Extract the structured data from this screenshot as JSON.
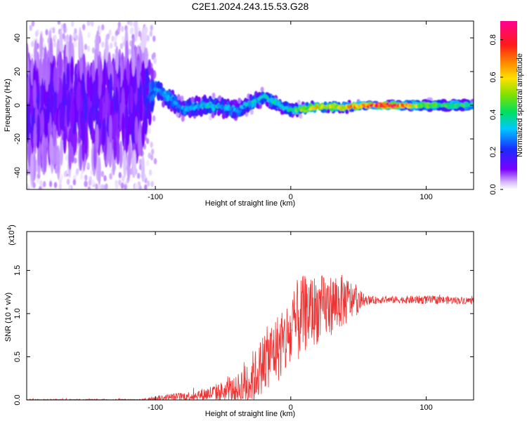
{
  "chart_data": [
    {
      "type": "heatmap",
      "title": "C2E1.2024.243.15.53.G28",
      "xlabel": "Height of straight line (km)",
      "ylabel": "Frequency (Hz)",
      "xlim": [
        -195,
        135
      ],
      "ylim": [
        -50,
        50
      ],
      "xticks": [
        -100,
        0,
        100
      ],
      "yticks": [
        -40,
        -20,
        0,
        20,
        40
      ],
      "colorbar": {
        "label": "Normalized spectral amplitude",
        "range": [
          0,
          0.9
        ],
        "ticks": [
          "0.0",
          "0.2",
          "0.4",
          "0.6",
          "0.8"
        ],
        "colormap": "rainbow (purple → blue → cyan → green → yellow → orange → red → magenta)"
      },
      "ridge": [
        {
          "x": -190,
          "freq": 0,
          "amp": 0.15,
          "spread": 45
        },
        {
          "x": -150,
          "freq": 0,
          "amp": 0.15,
          "spread": 45
        },
        {
          "x": -110,
          "freq": 0,
          "amp": 0.15,
          "spread": 45
        },
        {
          "x": -100,
          "freq": 10,
          "amp": 0.3,
          "spread": 8
        },
        {
          "x": -80,
          "freq": -2,
          "amp": 0.3,
          "spread": 6
        },
        {
          "x": -60,
          "freq": 0,
          "amp": 0.35,
          "spread": 6
        },
        {
          "x": -40,
          "freq": -3,
          "amp": 0.3,
          "spread": 6
        },
        {
          "x": -20,
          "freq": 5,
          "amp": 0.35,
          "spread": 5
        },
        {
          "x": 0,
          "freq": -3,
          "amp": 0.4,
          "spread": 4
        },
        {
          "x": 20,
          "freq": -1,
          "amp": 0.6,
          "spread": 3
        },
        {
          "x": 40,
          "freq": -1,
          "amp": 0.6,
          "spread": 3
        },
        {
          "x": 60,
          "freq": 0,
          "amp": 0.75,
          "spread": 2
        },
        {
          "x": 70,
          "freq": 0,
          "amp": 0.85,
          "spread": 2
        },
        {
          "x": 100,
          "freq": 0,
          "amp": 0.45,
          "spread": 3
        },
        {
          "x": 135,
          "freq": 0,
          "amp": 0.4,
          "spread": 3
        }
      ]
    },
    {
      "type": "line",
      "xlabel": "Height of straight line (km)",
      "ylabel": "SNR (10 * v/v)",
      "y_multiplier": "(x10",
      "y_multiplier_exp": "4",
      "xlim": [
        -195,
        135
      ],
      "ylim": [
        0,
        1.95
      ],
      "xticks": [
        -100,
        0,
        100
      ],
      "yticks": [
        0,
        0.5,
        1.0,
        1.5
      ],
      "ytick_labels": [
        "0.0",
        "0.5",
        "1.0",
        "1.5"
      ],
      "series": [
        {
          "name": "SNR",
          "color": "#ee3333",
          "envelope": {
            "x": [
              -195,
              -110,
              -100,
              -70,
              -40,
              -32,
              -25,
              -20,
              -10,
              0,
              5,
              10,
              20,
              30,
              40,
              50,
              55,
              70,
              100,
              135
            ],
            "base": [
              0,
              0,
              0.02,
              0.05,
              0.12,
              0.2,
              0.3,
              0.45,
              0.6,
              0.75,
              0.9,
              1.0,
              1.05,
              1.1,
              1.15,
              1.15,
              1.15,
              1.16,
              1.16,
              1.15
            ],
            "swing": [
              0.01,
              0.01,
              0.03,
              0.06,
              0.15,
              0.35,
              0.3,
              0.35,
              0.4,
              0.45,
              0.5,
              0.45,
              0.4,
              0.35,
              0.3,
              0.15,
              0.05,
              0.04,
              0.05,
              0.04
            ]
          }
        }
      ]
    }
  ]
}
